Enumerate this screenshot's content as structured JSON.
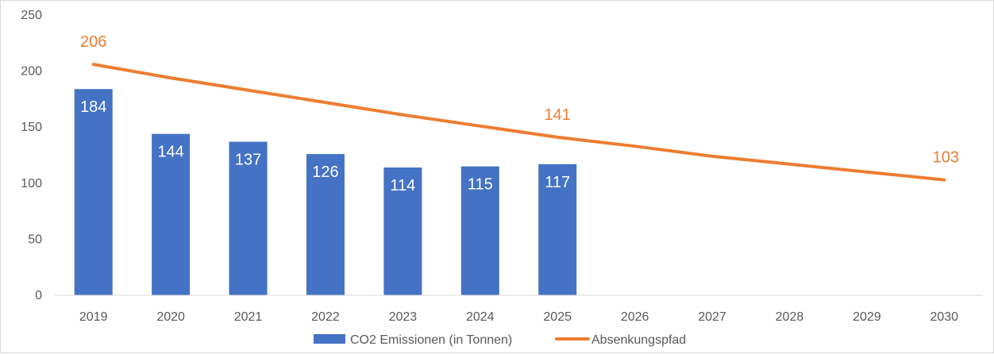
{
  "chart_data": {
    "type": "bar",
    "categories": [
      "2019",
      "2020",
      "2021",
      "2022",
      "2023",
      "2024",
      "2025",
      "2026",
      "2027",
      "2028",
      "2029",
      "2030"
    ],
    "ylim": [
      0,
      250
    ],
    "yticks": [
      0,
      50,
      100,
      150,
      200,
      250
    ],
    "grid": false,
    "legend_position": "bottom",
    "colors": {
      "bar": "#4472c4",
      "line": "#ed7d31",
      "axis": "#d9d9d9",
      "text": "#595959"
    },
    "series": [
      {
        "name": "CO2 Emissionen (in Tonnen)",
        "type": "bar",
        "values": [
          184,
          144,
          137,
          126,
          114,
          115,
          117,
          null,
          null,
          null,
          null,
          null
        ],
        "data_labels": [
          "184",
          "144",
          "137",
          "126",
          "114",
          "115",
          "117"
        ]
      },
      {
        "name": "Absenkungspfad",
        "type": "line",
        "values": [
          206,
          194,
          183,
          172,
          161,
          151,
          141,
          133,
          124,
          117,
          110,
          103
        ],
        "data_labels": [
          {
            "category": "2019",
            "value": 206,
            "text": "206"
          },
          {
            "category": "2025",
            "value": 141,
            "text": "141"
          },
          {
            "category": "2030",
            "value": 103,
            "text": "103"
          }
        ]
      }
    ]
  }
}
